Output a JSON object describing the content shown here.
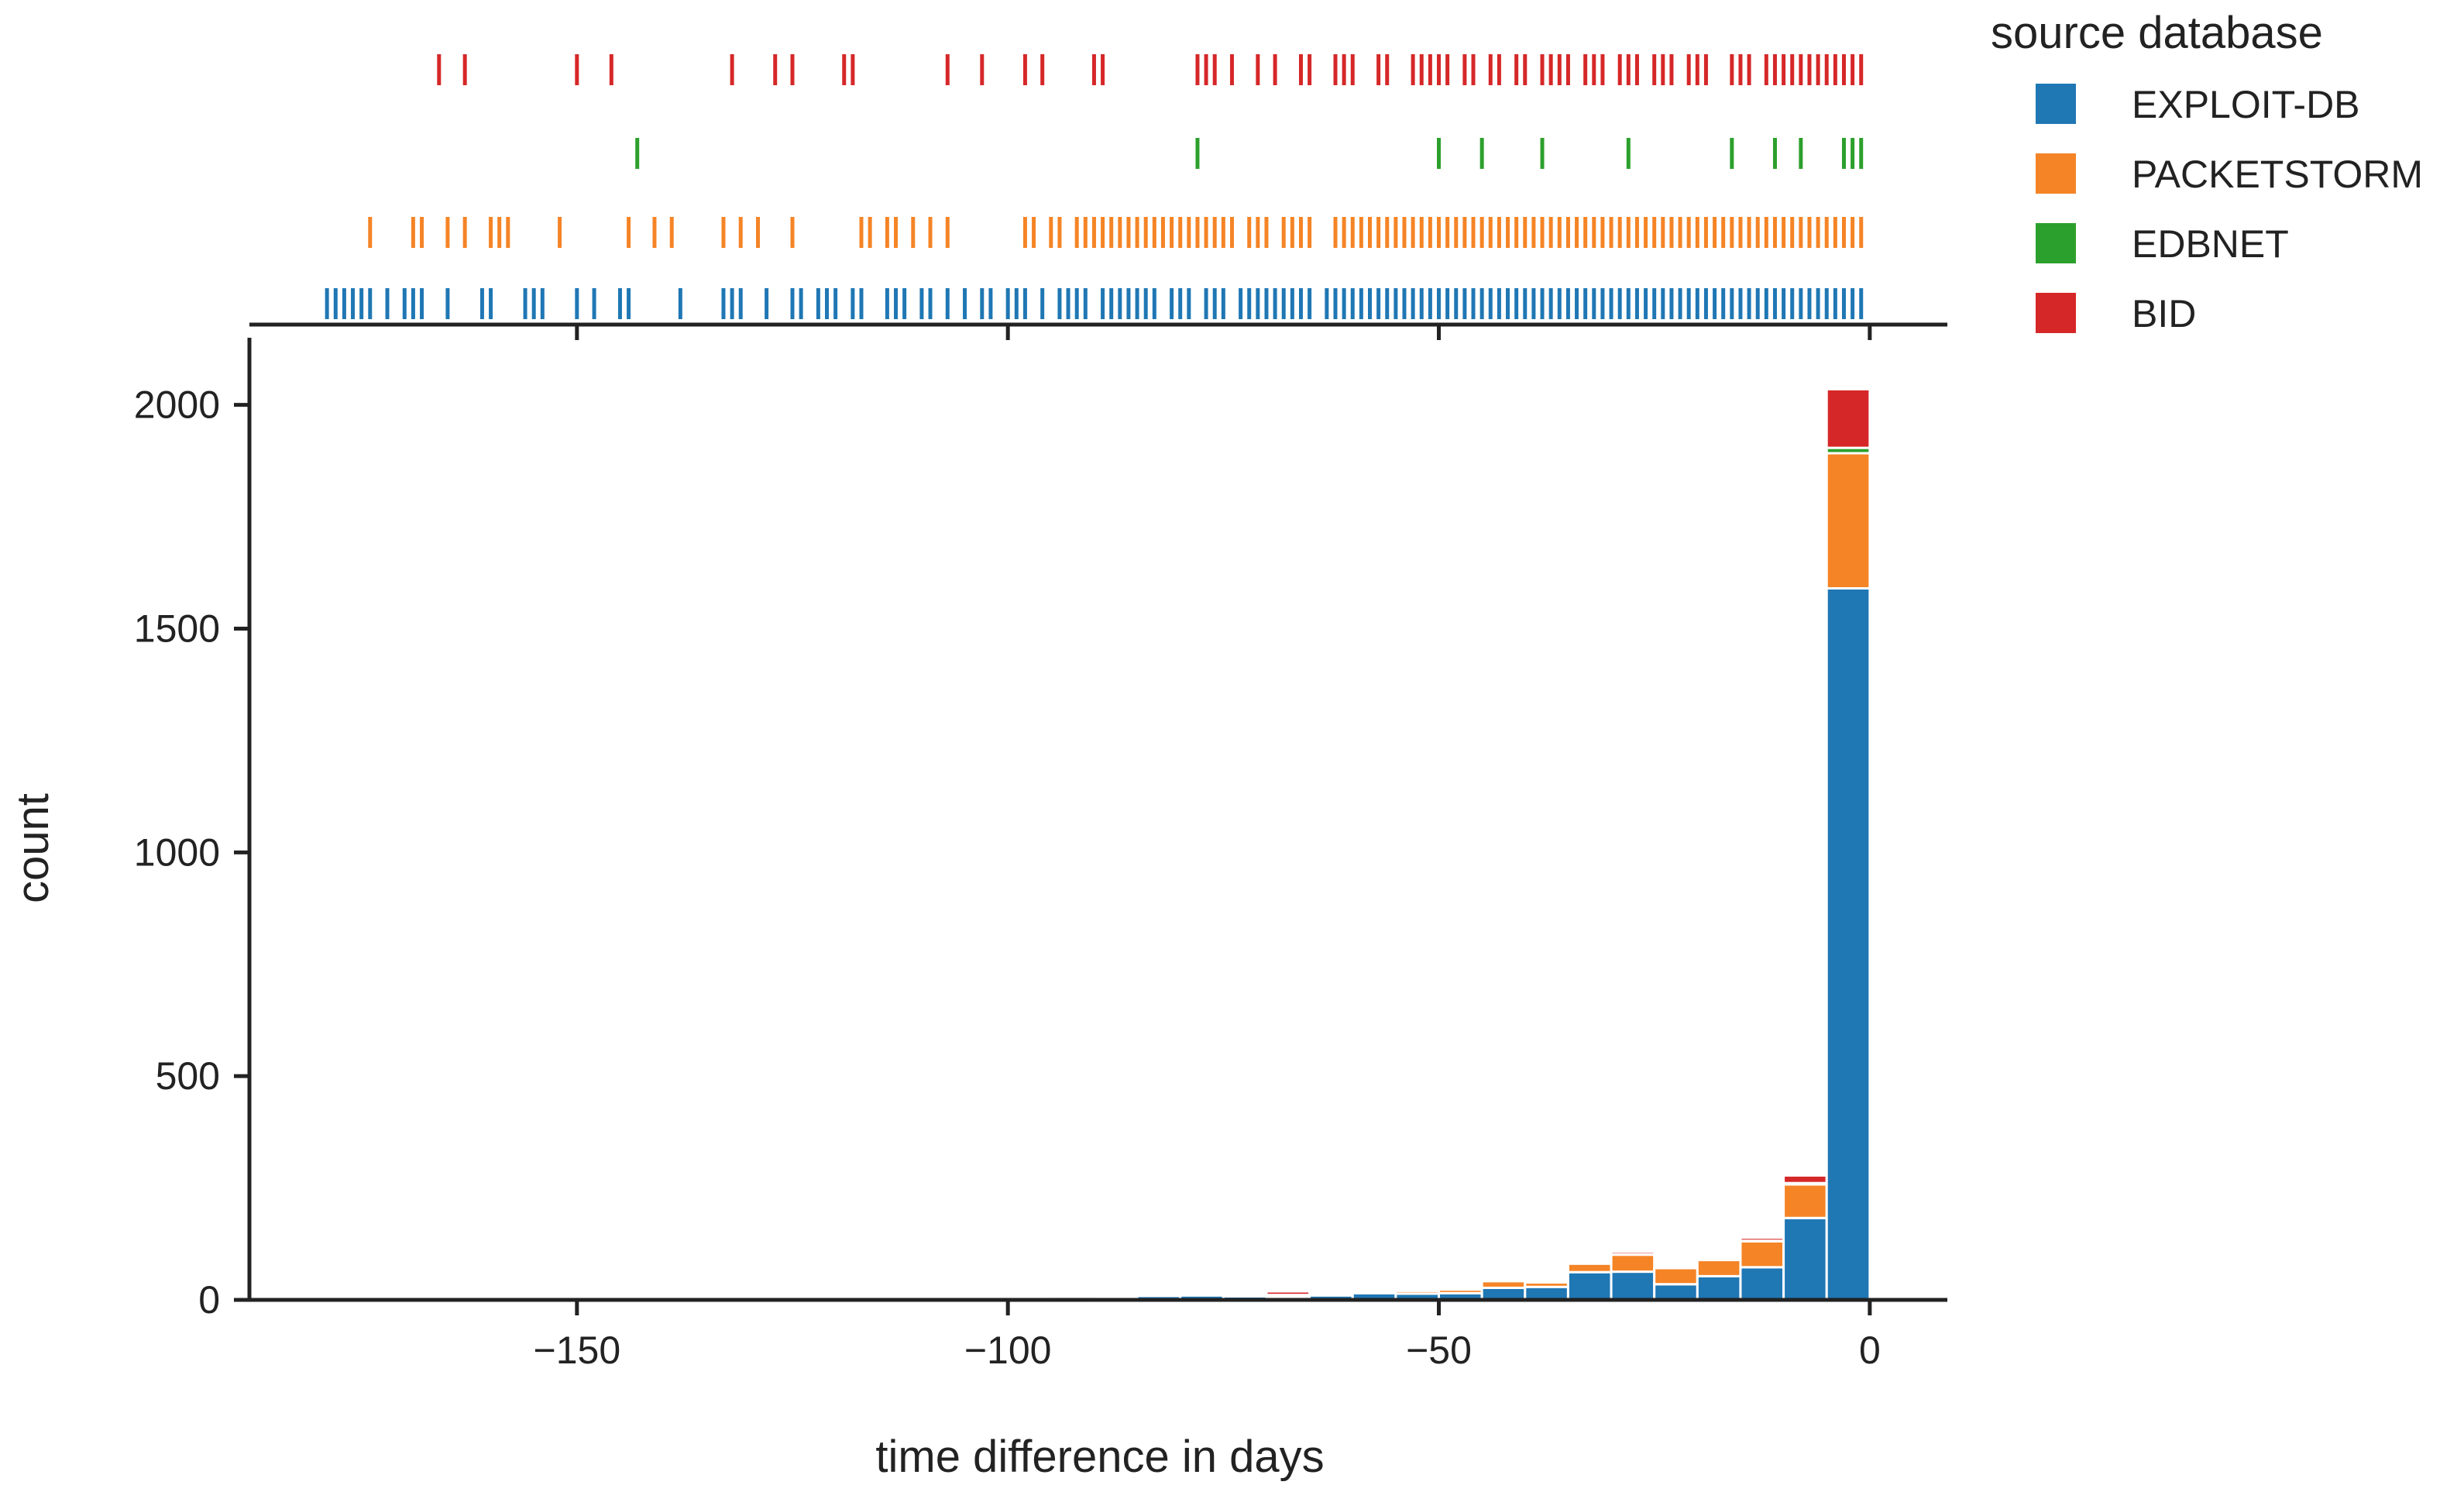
{
  "chart_data": {
    "type": "bar",
    "subtype": "stacked-histogram-with-rug",
    "title": "",
    "xlabel": "time difference in days",
    "ylabel": "count",
    "xlim": [
      -188,
      9
    ],
    "ylim": [
      0,
      2150
    ],
    "x_ticks": [
      -150,
      -100,
      -50,
      0
    ],
    "x_tick_labels": [
      "−150",
      "−100",
      "−50",
      "0"
    ],
    "y_ticks": [
      0,
      500,
      1000,
      1500,
      2000
    ],
    "y_tick_labels": [
      "0",
      "500",
      "1000",
      "1500",
      "2000"
    ],
    "bin_width": 5,
    "bin_starts": [
      -95,
      -90,
      -85,
      -80,
      -75,
      -70,
      -65,
      -60,
      -55,
      -50,
      -45,
      -40,
      -35,
      -30,
      -25,
      -20,
      -15,
      -10,
      -5
    ],
    "legend": {
      "title": "source database",
      "placement": "outside-top-right",
      "entries": [
        "EXPLOIT-DB",
        "PACKETSTORM",
        "EDBNET",
        "BID"
      ]
    },
    "series": [
      {
        "name": "EXPLOIT-DB",
        "color": "#1f77b4",
        "values": [
          7,
          5,
          9,
          10,
          8,
          7,
          10,
          15,
          14,
          15,
          27,
          29,
          62,
          63,
          35,
          53,
          73,
          183,
          1590
        ]
      },
      {
        "name": "PACKETSTORM",
        "color": "#f58426",
        "values": [
          0,
          0,
          2,
          3,
          4,
          4,
          3,
          4,
          6,
          8,
          15,
          10,
          19,
          38,
          36,
          36,
          58,
          75,
          302
        ]
      },
      {
        "name": "EDBNET",
        "color": "#2ca02c",
        "values": [
          0,
          0,
          0,
          0,
          0,
          0,
          0,
          0,
          0,
          0,
          1,
          0,
          1,
          1,
          0,
          0,
          1,
          3,
          12
        ]
      },
      {
        "name": "BID",
        "color": "#d62728",
        "values": [
          0,
          0,
          0,
          0,
          0,
          8,
          0,
          0,
          0,
          0,
          5,
          1,
          5,
          6,
          0,
          0,
          7,
          17,
          131
        ]
      }
    ],
    "rug": [
      {
        "name": "BID",
        "color": "#d62728",
        "x": [
          -166,
          -163,
          -150,
          -146,
          -132,
          -127,
          -125,
          -119,
          -118,
          -107,
          -103,
          -98,
          -96,
          -90,
          -89,
          -78,
          -77,
          -76,
          -74,
          -71,
          -69,
          -66,
          -65,
          -62,
          -61,
          -60,
          -57,
          -56,
          -53,
          -52,
          -51,
          -50,
          -49,
          -47,
          -46,
          -44,
          -43,
          -41,
          -40,
          -38,
          -37,
          -36,
          -35,
          -33,
          -32,
          -31,
          -29,
          -28,
          -27,
          -25,
          -24,
          -23,
          -21,
          -20,
          -19,
          -16,
          -15,
          -14,
          -12,
          -11,
          -10,
          -9,
          -8,
          -7,
          -6,
          -5,
          -4,
          -3,
          -2,
          -1
        ]
      },
      {
        "name": "EDBNET",
        "color": "#2ca02c",
        "x": [
          -143,
          -78,
          -50,
          -45,
          -38,
          -28,
          -16,
          -11,
          -8,
          -3,
          -2,
          -1
        ]
      },
      {
        "name": "PACKETSTORM",
        "color": "#f58426",
        "x": [
          -174,
          -169,
          -168,
          -165,
          -163,
          -160,
          -159,
          -158,
          -152,
          -144,
          -141,
          -139,
          -133,
          -131,
          -129,
          -125,
          -117,
          -116,
          -114,
          -113,
          -111,
          -109,
          -107,
          -98,
          -97,
          -95,
          -94,
          -92,
          -91,
          -90,
          -89,
          -88,
          -87,
          -86,
          -85,
          -84,
          -83,
          -82,
          -81,
          -80,
          -79,
          -78,
          -77,
          -76,
          -75,
          -74,
          -72,
          -71,
          -70,
          -68,
          -67,
          -66,
          -65,
          -62,
          -61,
          -60,
          -59,
          -58,
          -57,
          -56,
          -55,
          -54,
          -53,
          -52,
          -51,
          -50,
          -49,
          -48,
          -47,
          -46,
          -45,
          -44,
          -43,
          -42,
          -41,
          -40,
          -39,
          -38,
          -37,
          -36,
          -35,
          -34,
          -33,
          -32,
          -31,
          -30,
          -29,
          -28,
          -27,
          -26,
          -25,
          -24,
          -23,
          -22,
          -21,
          -20,
          -19,
          -18,
          -17,
          -16,
          -15,
          -14,
          -13,
          -12,
          -11,
          -10,
          -9,
          -8,
          -7,
          -6,
          -5,
          -4,
          -3,
          -2,
          -1
        ]
      },
      {
        "name": "EXPLOIT-DB",
        "color": "#1f77b4",
        "x": [
          -179,
          -178,
          -177,
          -176,
          -175,
          -174,
          -172,
          -170,
          -169,
          -168,
          -165,
          -161,
          -160,
          -156,
          -155,
          -154,
          -150,
          -148,
          -145,
          -144,
          -138,
          -133,
          -132,
          -131,
          -128,
          -125,
          -124,
          -122,
          -121,
          -120,
          -118,
          -117,
          -114,
          -113,
          -112,
          -110,
          -109,
          -107,
          -105,
          -103,
          -102,
          -100,
          -99,
          -98,
          -96,
          -94,
          -93,
          -92,
          -91,
          -89,
          -88,
          -87,
          -86,
          -85,
          -84,
          -83,
          -81,
          -80,
          -79,
          -77,
          -76,
          -75,
          -73,
          -72,
          -71,
          -70,
          -69,
          -68,
          -67,
          -66,
          -65,
          -63,
          -62,
          -61,
          -60,
          -59,
          -58,
          -57,
          -56,
          -55,
          -54,
          -53,
          -52,
          -51,
          -50,
          -49,
          -48,
          -47,
          -46,
          -45,
          -44,
          -43,
          -42,
          -41,
          -40,
          -39,
          -38,
          -37,
          -36,
          -35,
          -34,
          -33,
          -32,
          -31,
          -30,
          -29,
          -28,
          -27,
          -26,
          -25,
          -24,
          -23,
          -22,
          -21,
          -20,
          -19,
          -18,
          -17,
          -16,
          -15,
          -14,
          -13,
          -12,
          -11,
          -10,
          -9,
          -8,
          -7,
          -6,
          -5,
          -4,
          -3,
          -2,
          -1
        ]
      }
    ]
  }
}
